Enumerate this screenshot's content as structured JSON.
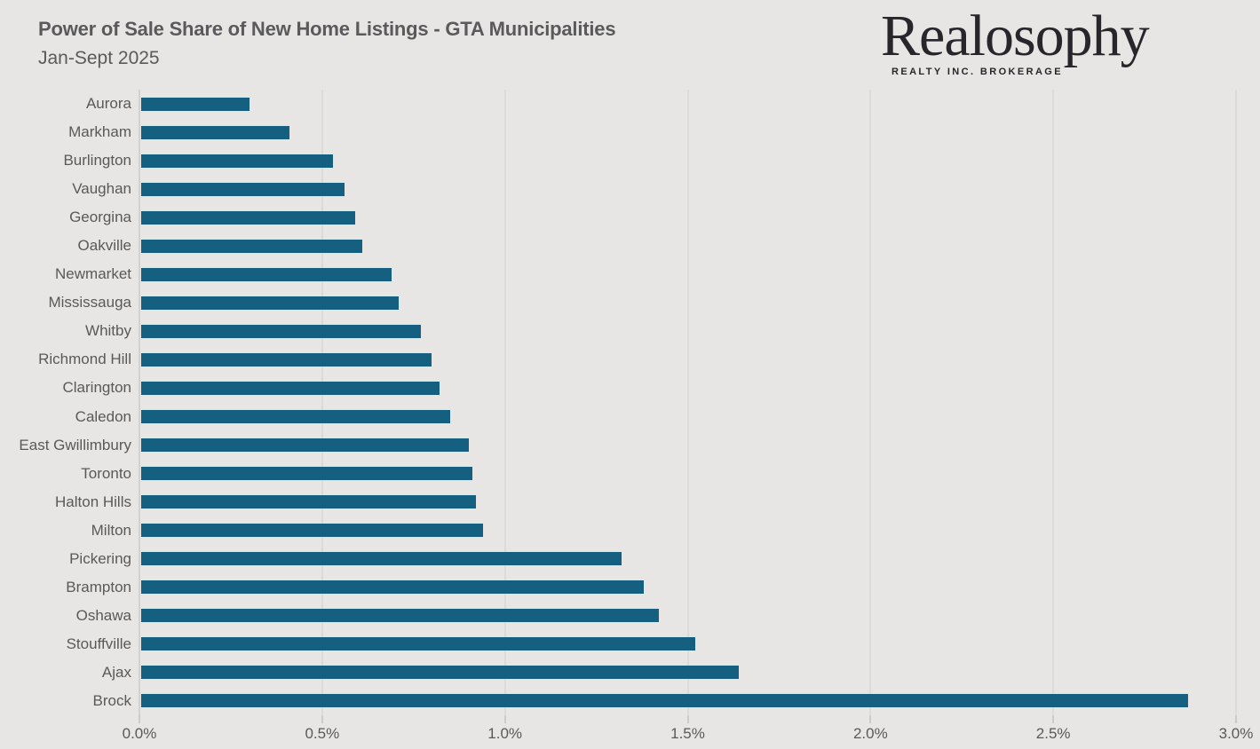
{
  "header": {
    "title": "Power of Sale Share of New Home Listings - GTA Municipalities",
    "subtitle": "Jan-Sept 2025"
  },
  "logo": {
    "wordmark": "Realosophy",
    "tagline": "REALTY INC. BROKERAGE"
  },
  "colors": {
    "background": "#E7E6E4",
    "bar": "#155F80",
    "heading_text": "#5A5A5C",
    "axis_text": "#595959",
    "gridline": "#DCDBD9",
    "axis_line": "#D2D1CF",
    "logo_text": "#27272B"
  },
  "chart_data": {
    "type": "bar",
    "orientation": "horizontal",
    "title": "Power of Sale Share of New Home Listings - GTA Municipalities",
    "subtitle": "Jan-Sept 2025",
    "xlabel": "",
    "ylabel": "",
    "unit": "%",
    "xlim": [
      0,
      3.0
    ],
    "x_tick_labels": [
      "0.0%",
      "0.5%",
      "1.0%",
      "1.5%",
      "2.0%",
      "2.5%",
      "3.0%"
    ],
    "x_tick_values": [
      0,
      0.5,
      1.0,
      1.5,
      2.0,
      2.5,
      3.0
    ],
    "grid": "vertical gridlines on",
    "legend": "none",
    "bar_color": "#155F80",
    "categories": [
      "Aurora",
      "Markham",
      "Burlington",
      "Vaughan",
      "Georgina",
      "Oakville",
      "Newmarket",
      "Mississauga",
      "Whitby",
      "Richmond Hill",
      "Clarington",
      "Caledon",
      "East Gwillimbury",
      "Toronto",
      "Halton Hills",
      "Milton",
      "Pickering",
      "Brampton",
      "Oshawa",
      "Stouffville",
      "Ajax",
      "Brock"
    ],
    "values": [
      0.3,
      0.41,
      0.53,
      0.56,
      0.59,
      0.61,
      0.69,
      0.71,
      0.77,
      0.8,
      0.82,
      0.85,
      0.9,
      0.91,
      0.92,
      0.94,
      1.32,
      1.38,
      1.42,
      1.52,
      1.64,
      2.87
    ]
  }
}
